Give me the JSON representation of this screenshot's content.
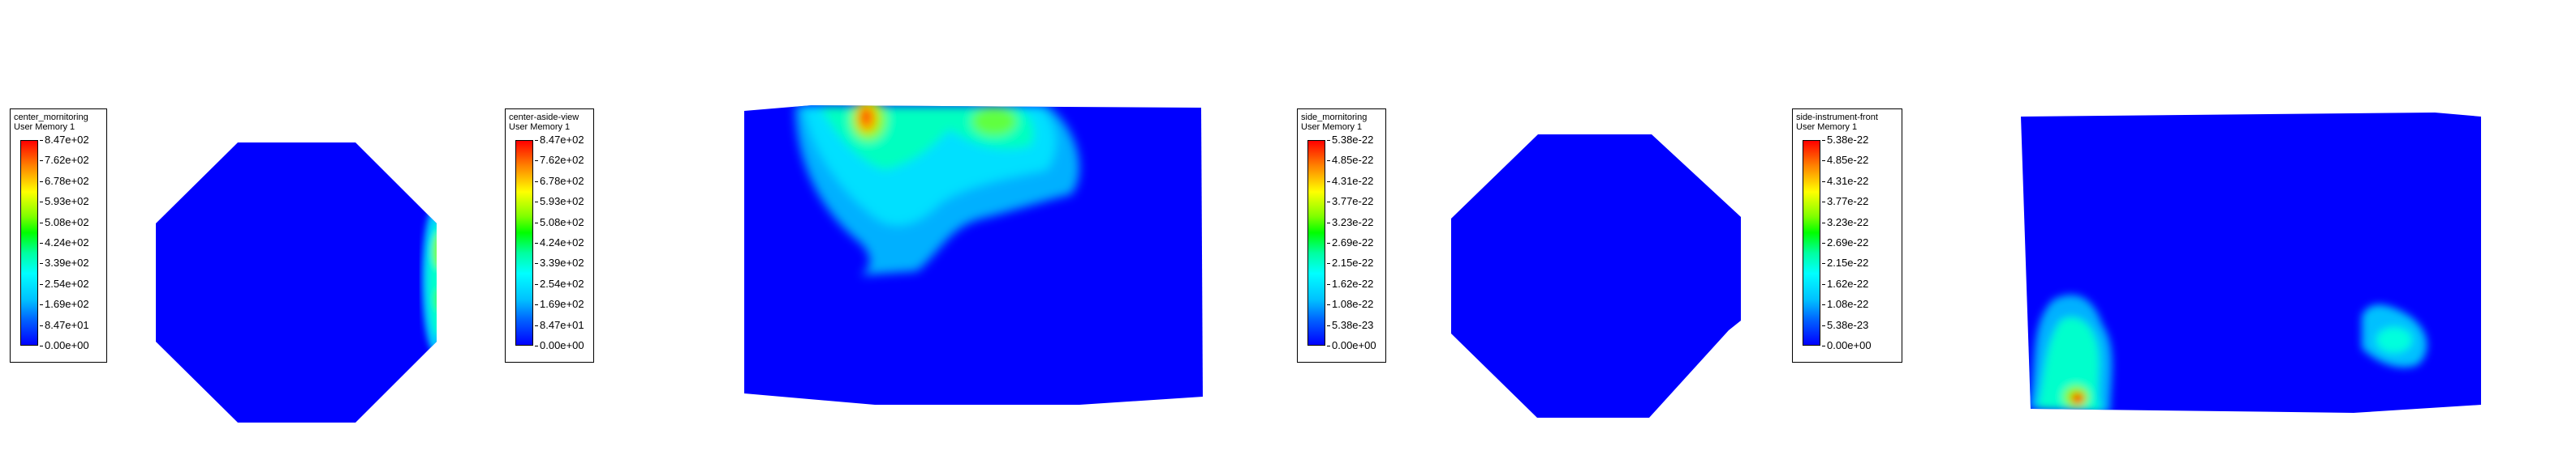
{
  "legends": [
    {
      "id": "legend-center-monitoring",
      "title": "center_mornitoring",
      "subtitle": "User Memory 1",
      "ticks": [
        "8.47e+02",
        "7.62e+02",
        "6.78e+02",
        "5.93e+02",
        "5.08e+02",
        "4.24e+02",
        "3.39e+02",
        "2.54e+02",
        "1.69e+02",
        "8.47e+01",
        "0.00e+00"
      ]
    },
    {
      "id": "legend-center-aside-view",
      "title": "center-aside-view",
      "subtitle": "User Memory 1",
      "ticks": [
        "8.47e+02",
        "7.62e+02",
        "6.78e+02",
        "5.93e+02",
        "5.08e+02",
        "4.24e+02",
        "3.39e+02",
        "2.54e+02",
        "1.69e+02",
        "8.47e+01",
        "0.00e+00"
      ]
    },
    {
      "id": "legend-side-monitoring",
      "title": "side_mornitoring",
      "subtitle": "User Memory 1",
      "ticks": [
        "5.38e-22",
        "4.85e-22",
        "4.31e-22",
        "3.77e-22",
        "3.23e-22",
        "2.69e-22",
        "2.15e-22",
        "1.62e-22",
        "1.08e-22",
        "5.38e-23",
        "0.00e+00"
      ]
    },
    {
      "id": "legend-side-instrument-front",
      "title": "side-instrument-front",
      "subtitle": "User Memory 1",
      "ticks": [
        "5.38e-22",
        "4.85e-22",
        "4.31e-22",
        "3.77e-22",
        "3.23e-22",
        "2.69e-22",
        "2.15e-22",
        "1.62e-22",
        "1.08e-22",
        "5.38e-23",
        "0.00e+00"
      ]
    }
  ],
  "colors": {
    "field_base": "#0000ff",
    "high": "#ff0000",
    "mid": "#00ff00",
    "low": "#00ffff"
  }
}
